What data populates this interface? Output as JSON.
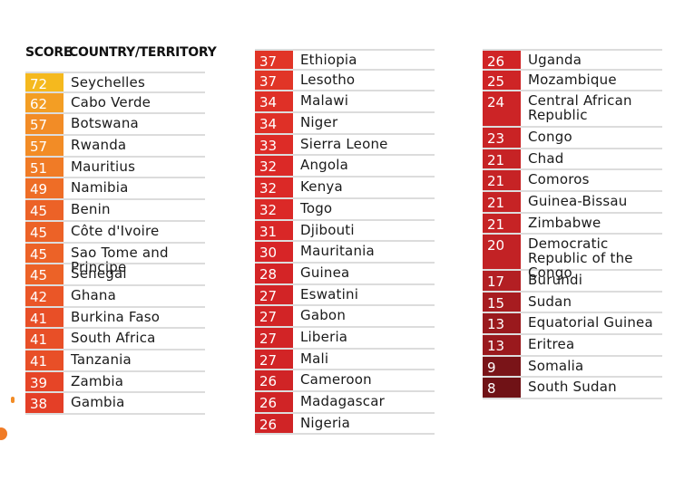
{
  "chart_data": {
    "type": "table",
    "header": {
      "score_label": "SCORE",
      "country_label": "COUNTRY/TERRITORY"
    },
    "columns": [
      [
        {
          "score": 72,
          "country": "Seychelles"
        },
        {
          "score": 62,
          "country": "Cabo Verde"
        },
        {
          "score": 57,
          "country": "Botswana"
        },
        {
          "score": 57,
          "country": "Rwanda"
        },
        {
          "score": 51,
          "country": "Mauritius"
        },
        {
          "score": 49,
          "country": "Namibia"
        },
        {
          "score": 45,
          "country": "Benin"
        },
        {
          "score": 45,
          "country": "Côte d'Ivoire"
        },
        {
          "score": 45,
          "country": "Sao Tome and Principe"
        },
        {
          "score": 45,
          "country": "Senegal"
        },
        {
          "score": 42,
          "country": "Ghana"
        },
        {
          "score": 41,
          "country": "Burkina Faso"
        },
        {
          "score": 41,
          "country": "South Africa"
        },
        {
          "score": 41,
          "country": "Tanzania"
        },
        {
          "score": 39,
          "country": "Zambia"
        },
        {
          "score": 38,
          "country": "Gambia"
        }
      ],
      [
        {
          "score": 37,
          "country": "Ethiopia"
        },
        {
          "score": 37,
          "country": "Lesotho"
        },
        {
          "score": 34,
          "country": "Malawi"
        },
        {
          "score": 34,
          "country": "Niger"
        },
        {
          "score": 33,
          "country": "Sierra Leone"
        },
        {
          "score": 32,
          "country": "Angola"
        },
        {
          "score": 32,
          "country": "Kenya"
        },
        {
          "score": 32,
          "country": "Togo"
        },
        {
          "score": 31,
          "country": "Djibouti"
        },
        {
          "score": 30,
          "country": "Mauritania"
        },
        {
          "score": 28,
          "country": "Guinea"
        },
        {
          "score": 27,
          "country": "Eswatini"
        },
        {
          "score": 27,
          "country": "Gabon"
        },
        {
          "score": 27,
          "country": "Liberia"
        },
        {
          "score": 27,
          "country": "Mali"
        },
        {
          "score": 26,
          "country": "Cameroon"
        },
        {
          "score": 26,
          "country": "Madagascar"
        },
        {
          "score": 26,
          "country": "Nigeria"
        }
      ],
      [
        {
          "score": 26,
          "country": "Uganda"
        },
        {
          "score": 25,
          "country": "Mozambique"
        },
        {
          "score": 24,
          "country": "Central African Republic"
        },
        {
          "score": 23,
          "country": "Congo"
        },
        {
          "score": 21,
          "country": "Chad"
        },
        {
          "score": 21,
          "country": "Comoros"
        },
        {
          "score": 21,
          "country": "Guinea-Bissau"
        },
        {
          "score": 21,
          "country": "Zimbabwe"
        },
        {
          "score": 20,
          "country": "Democratic Republic of the Congo"
        },
        {
          "score": 17,
          "country": "Burundi"
        },
        {
          "score": 15,
          "country": "Sudan"
        },
        {
          "score": 13,
          "country": "Equatorial Guinea"
        },
        {
          "score": 13,
          "country": "Eritrea"
        },
        {
          "score": 9,
          "country": "Somalia"
        },
        {
          "score": 8,
          "country": "South Sudan"
        }
      ]
    ],
    "score_colors": {
      "72": "#f5b91e",
      "62": "#f39e24",
      "57": "#f28c26",
      "51": "#f07b26",
      "49": "#ee6d26",
      "45": "#ec6227",
      "42": "#ea5627",
      "41": "#e84f27",
      "39": "#e64527",
      "38": "#e43f27",
      "37": "#e13527",
      "34": "#df3027",
      "33": "#dd2c27",
      "32": "#db2927",
      "31": "#d92727",
      "30": "#d72527",
      "28": "#d42426",
      "27": "#d22426",
      "26": "#d02426",
      "25": "#ce2426",
      "24": "#cc2426",
      "23": "#c92325",
      "21": "#c62325",
      "20": "#c22225",
      "17": "#b31f23",
      "15": "#a71c20",
      "13": "#9a191d",
      "9": "#7a1418",
      "8": "#701216"
    }
  }
}
